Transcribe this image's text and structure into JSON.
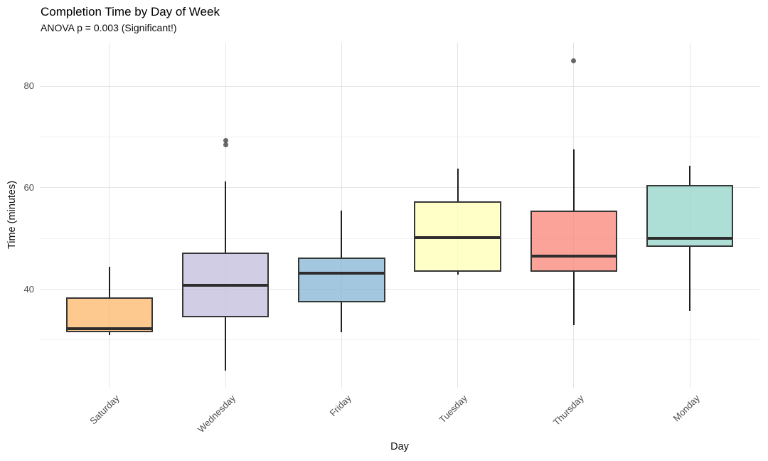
{
  "title": "Completion Time by Day of Week",
  "subtitle": "ANOVA p = 0.003 (Significant!)",
  "chart_data": {
    "type": "boxplot",
    "orientation": "vertical",
    "title": "Completion Time by Day of Week",
    "subtitle": "ANOVA p = 0.003 (Significant!)",
    "xlabel": "Day",
    "ylabel": "Time (minutes)",
    "ylim": [
      20.6,
      88.6
    ],
    "yticks_major": [
      40,
      60,
      80
    ],
    "yticks_minor": [
      30,
      50,
      70
    ],
    "grid": "major+minor, light gray on white (minimal theme), vertical gridline at each category",
    "legend": "none",
    "categories": [
      "Saturday",
      "Wednesday",
      "Friday",
      "Tuesday",
      "Thursday",
      "Monday"
    ],
    "series": [
      {
        "category": "Saturday",
        "whisker_low": 31.0,
        "q1": 31.5,
        "median": 32.2,
        "q3": 38.4,
        "whisker_high": 44.5,
        "outliers": [],
        "fill": "#FDB462"
      },
      {
        "category": "Wednesday",
        "whisker_low": 24.0,
        "q1": 34.5,
        "median": 40.8,
        "q3": 47.3,
        "whisker_high": 61.2,
        "outliers": [
          68.5,
          69.3
        ],
        "fill": "#BEBADA"
      },
      {
        "category": "Friday",
        "whisker_low": 31.6,
        "q1": 37.4,
        "median": 43.2,
        "q3": 46.3,
        "whisker_high": 55.5,
        "outliers": [],
        "fill": "#80B1D3"
      },
      {
        "category": "Tuesday",
        "whisker_low": 42.9,
        "q1": 43.4,
        "median": 50.2,
        "q3": 57.3,
        "whisker_high": 63.8,
        "outliers": [],
        "fill": "#FFFFB3"
      },
      {
        "category": "Thursday",
        "whisker_low": 33.0,
        "q1": 43.5,
        "median": 46.5,
        "q3": 55.5,
        "whisker_high": 67.5,
        "outliers": [
          85.0
        ],
        "fill": "#FB8072"
      },
      {
        "category": "Monday",
        "whisker_low": 35.7,
        "q1": 48.4,
        "median": 50.1,
        "q3": 60.6,
        "whisker_high": 64.3,
        "outliers": [],
        "fill": "#8DD3C7"
      }
    ],
    "fill_alpha": 0.72,
    "colors": {
      "box_border": "#363636",
      "median_line": "#2d2d2d",
      "whisker": "#202020",
      "outlier": "#4d4d4d",
      "grid_major": "#e4e4e4",
      "grid_minor": "#f0f0f0",
      "tick_text": "#4d4d4d",
      "background": "#ffffff"
    }
  }
}
